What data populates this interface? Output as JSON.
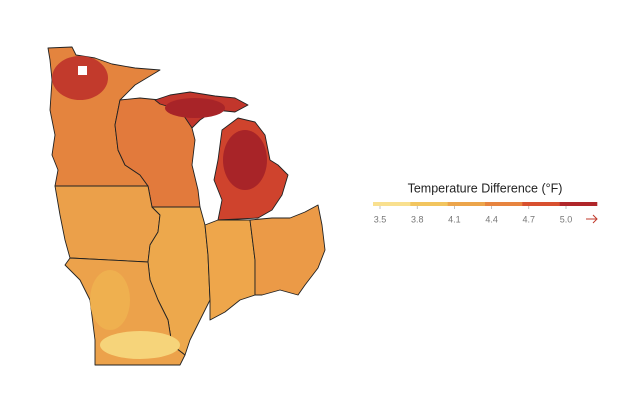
{
  "legend": {
    "title": "Temperature Difference (°F)",
    "ticks": [
      3.5,
      3.8,
      4.1,
      4.4,
      4.7,
      {
        "value": 5,
        "label": "5.0"
      }
    ],
    "colors": [
      "#f9e08f",
      "#f2c55f",
      "#eca54b",
      "#e7843f",
      "#d8502f",
      "#b0262a"
    ]
  }
}
